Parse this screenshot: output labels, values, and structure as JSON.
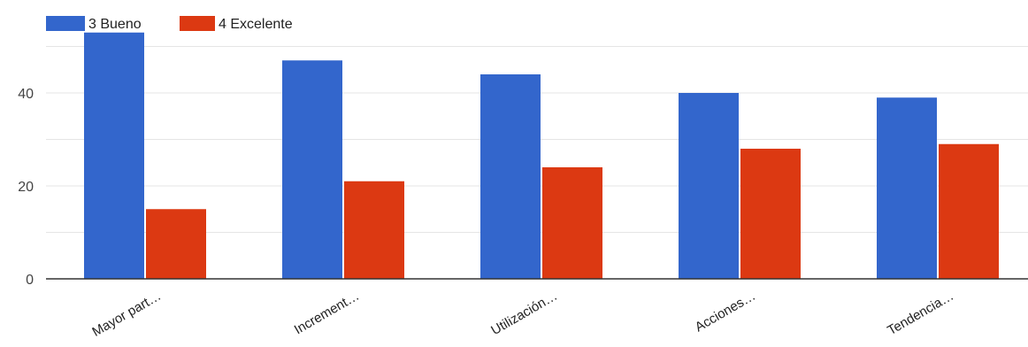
{
  "colors": {
    "series_1": "#3366cc",
    "series_2": "#dc3912",
    "gridline": "#e5e5e5",
    "baseline": "#333333"
  },
  "chart_data": {
    "type": "bar",
    "legend": {
      "position": "top-left"
    },
    "grid": true,
    "ylim": [
      0,
      55
    ],
    "yticks": [
      0,
      20,
      40
    ],
    "minor_yticks": [
      10,
      30,
      50
    ],
    "categories": [
      "Mayor part…",
      "Increment…",
      "Utilización…",
      "Acciones…",
      "Tendencia…"
    ],
    "series": [
      {
        "name": "3 Bueno",
        "values": [
          53,
          47,
          44,
          40,
          39
        ]
      },
      {
        "name": "4 Excelente",
        "values": [
          15,
          21,
          24,
          28,
          29
        ]
      }
    ]
  }
}
